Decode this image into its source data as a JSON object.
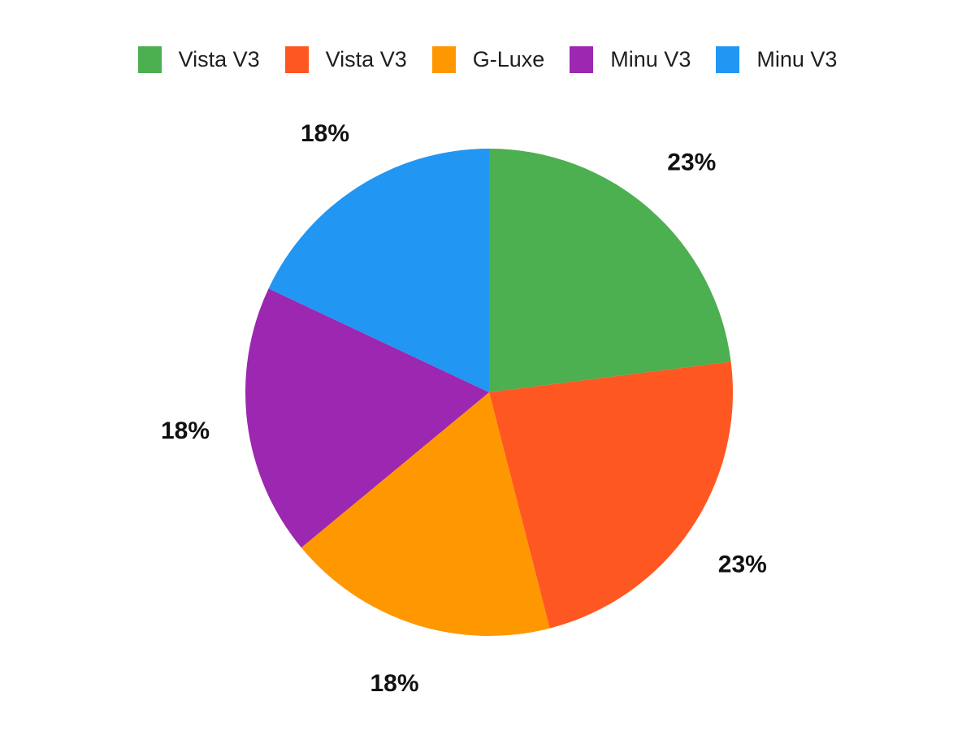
{
  "chart_data": {
    "type": "pie",
    "title": "",
    "legend_position": "top",
    "direction": "clockwise",
    "start_angle_deg": 0,
    "background": "#ffffff",
    "label_color": "#111111",
    "legend_text_color": "#1f1f1f",
    "slices": [
      {
        "label": "Vista V3",
        "value": 23,
        "display": "23%",
        "color": "#4CAF50"
      },
      {
        "label": "Vista V3",
        "value": 23,
        "display": "23%",
        "color": "#FF5722"
      },
      {
        "label": "G-Luxe",
        "value": 18,
        "display": "18%",
        "color": "#FF9800"
      },
      {
        "label": "Minu V3",
        "value": 18,
        "display": "18%",
        "color": "#9C27B0"
      },
      {
        "label": "Minu V3",
        "value": 18,
        "display": "18%",
        "color": "#2196F3"
      }
    ]
  }
}
